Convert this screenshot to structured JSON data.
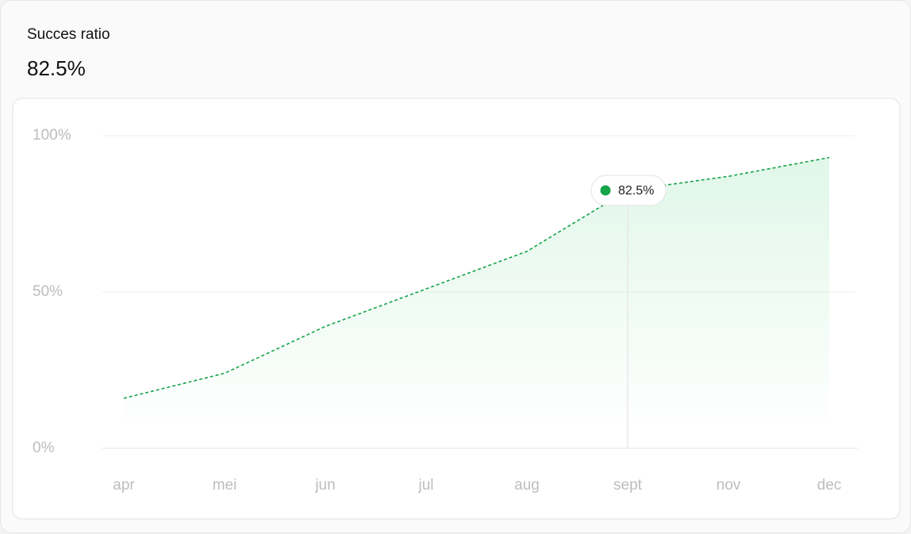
{
  "summary": {
    "title": "Succes ratio",
    "value": "82.5%"
  },
  "chart_data": {
    "type": "area",
    "categories": [
      "apr",
      "mei",
      "jun",
      "jul",
      "aug",
      "sept",
      "nov",
      "dec"
    ],
    "series": [
      {
        "color": "#16a34a",
        "values": [
          16,
          24,
          39,
          51,
          63,
          82.5,
          87,
          93
        ],
        "value_labels": [
          null,
          null,
          null,
          null,
          null,
          "82.5%",
          null,
          null
        ]
      }
    ],
    "ylim": [
      0,
      100
    ],
    "yticks": [
      {
        "value": 0,
        "label": "0%"
      },
      {
        "value": 50,
        "label": "50%"
      },
      {
        "value": 100,
        "label": "100%"
      }
    ],
    "grid": true
  }
}
